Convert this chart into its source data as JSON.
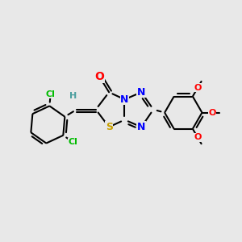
{
  "background_color": "#e8e8e8",
  "bond_color": "#000000",
  "bond_width": 1.5,
  "dbo": 0.055,
  "atom_colors": {
    "C": "#000000",
    "H": "#4a9e9e",
    "N": "#0000ff",
    "O": "#ff0000",
    "S": "#c8a000",
    "Cl": "#00bb00"
  },
  "font_size": 9,
  "fig_width": 3.0,
  "fig_height": 3.0,
  "dpi": 100
}
